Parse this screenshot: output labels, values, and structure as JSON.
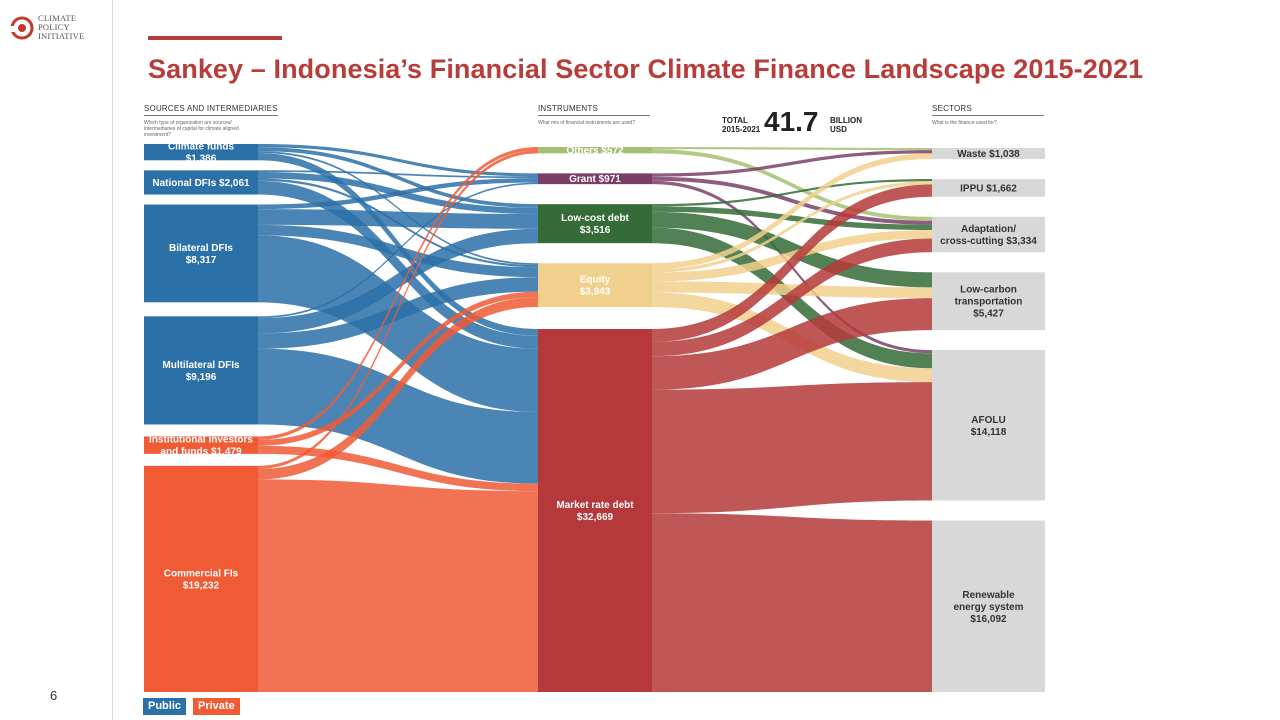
{
  "logo": {
    "text": "CLIMATE\nPOLICY\nINITIATIVE"
  },
  "page_number": "6",
  "title": "Sankey – Indonesia’s Financial Sector Climate Finance Landscape 2015-2021",
  "headers": {
    "sources": "SOURCES AND INTERMEDIARIES",
    "sources_sub": "Which type of organization are sources/ intermediaries of capital for climate aligned investment?",
    "instruments": "INSTRUMENTS",
    "instruments_sub": "What mix of financial instruments are used?",
    "sectors": "SECTORS",
    "sectors_sub": "What is the finance used for?"
  },
  "total": {
    "label_top": "TOTAL",
    "label_bottom": "2015-2021",
    "value": "41.7",
    "unit_top": "BILLION",
    "unit_bottom": "USD"
  },
  "legend": {
    "public": "Public",
    "private": "Private"
  },
  "colors": {
    "public": "#2c70a8",
    "private": "#f05a35",
    "title": "#b83c3a",
    "others": "#a5bf72",
    "grant": "#7a3f68",
    "lowcost": "#346b37",
    "equity": "#f1d08d",
    "market": "#b5393a",
    "sector": "#d8d8d8"
  },
  "chart_data": {
    "type": "sankey",
    "total": "41.7 BILLION USD",
    "nodes": [
      {
        "id": "climate_funds",
        "column": "sources",
        "label_lines": [
          "Climate funds",
          "$1,386"
        ],
        "value": 1386,
        "group": "public"
      },
      {
        "id": "national_dfis",
        "column": "sources",
        "label_lines": [
          "National DFIs $2,061"
        ],
        "value": 2061,
        "group": "public"
      },
      {
        "id": "bilateral_dfis",
        "column": "sources",
        "label_lines": [
          "Bilateral DFIs",
          "$8,317"
        ],
        "value": 8317,
        "group": "public"
      },
      {
        "id": "multilateral_dfis",
        "column": "sources",
        "label_lines": [
          "Multilateral DFIs",
          "$9,196"
        ],
        "value": 9196,
        "group": "public"
      },
      {
        "id": "institutional",
        "column": "sources",
        "label_lines": [
          "Institutional investors",
          "and funds $1,479"
        ],
        "value": 1479,
        "group": "private"
      },
      {
        "id": "commercial_fis",
        "column": "sources",
        "label_lines": [
          "Commercial FIs",
          "$19,232"
        ],
        "value": 19232,
        "group": "private"
      },
      {
        "id": "others",
        "column": "instruments",
        "label_lines": [
          "Others $572"
        ],
        "value": 572,
        "color": "others"
      },
      {
        "id": "grant",
        "column": "instruments",
        "label_lines": [
          "Grant $971"
        ],
        "value": 971,
        "color": "grant"
      },
      {
        "id": "lowcost",
        "column": "instruments",
        "label_lines": [
          "Low-cost debt",
          "$3,516"
        ],
        "value": 3516,
        "color": "lowcost"
      },
      {
        "id": "equity",
        "column": "instruments",
        "label_lines": [
          "Equity",
          "$3,943"
        ],
        "value": 3943,
        "color": "equity"
      },
      {
        "id": "market",
        "column": "instruments",
        "label_lines": [
          "Market rate debt",
          "$32,669"
        ],
        "value": 32669,
        "color": "market"
      },
      {
        "id": "waste",
        "column": "sectors",
        "label_lines": [
          "Waste $1,038"
        ],
        "value": 1038
      },
      {
        "id": "ippu",
        "column": "sectors",
        "label_lines": [
          "IPPU $1,662"
        ],
        "value": 1662
      },
      {
        "id": "adaptation",
        "column": "sectors",
        "label_lines": [
          "Adaptation/",
          "cross-cutting $3,334"
        ],
        "value": 3334
      },
      {
        "id": "transport",
        "column": "sectors",
        "label_lines": [
          "Low-carbon",
          "transportation",
          "$5,427"
        ],
        "value": 5427
      },
      {
        "id": "afolu",
        "column": "sectors",
        "label_lines": [
          "AFOLU",
          "$14,118"
        ],
        "value": 14118
      },
      {
        "id": "renewable",
        "column": "sectors",
        "label_lines": [
          "Renewable",
          "energy system",
          "$16,092"
        ],
        "value": 16092
      }
    ],
    "links": [
      {
        "source": "climate_funds",
        "target": "grant",
        "value": 280
      },
      {
        "source": "climate_funds",
        "target": "lowcost",
        "value": 330
      },
      {
        "source": "climate_funds",
        "target": "equity",
        "value": 160
      },
      {
        "source": "climate_funds",
        "target": "market",
        "value": 616
      },
      {
        "source": "national_dfis",
        "target": "grant",
        "value": 150
      },
      {
        "source": "national_dfis",
        "target": "lowcost",
        "value": 550
      },
      {
        "source": "national_dfis",
        "target": "equity",
        "value": 200
      },
      {
        "source": "national_dfis",
        "target": "market",
        "value": 1161
      },
      {
        "source": "bilateral_dfis",
        "target": "grant",
        "value": 390
      },
      {
        "source": "bilateral_dfis",
        "target": "lowcost",
        "value": 1336
      },
      {
        "source": "bilateral_dfis",
        "target": "equity",
        "value": 900
      },
      {
        "source": "bilateral_dfis",
        "target": "market",
        "value": 5691
      },
      {
        "source": "multilateral_dfis",
        "target": "grant",
        "value": 151
      },
      {
        "source": "multilateral_dfis",
        "target": "lowcost",
        "value": 1300
      },
      {
        "source": "multilateral_dfis",
        "target": "equity",
        "value": 1300
      },
      {
        "source": "multilateral_dfis",
        "target": "market",
        "value": 6445
      },
      {
        "source": "institutional",
        "target": "others",
        "value": 300
      },
      {
        "source": "institutional",
        "target": "equity",
        "value": 500
      },
      {
        "source": "institutional",
        "target": "market",
        "value": 679
      },
      {
        "source": "commercial_fis",
        "target": "others",
        "value": 272
      },
      {
        "source": "commercial_fis",
        "target": "equity",
        "value": 883
      },
      {
        "source": "commercial_fis",
        "target": "market",
        "value": 18077
      },
      {
        "source": "others",
        "target": "waste",
        "value": 200
      },
      {
        "source": "others",
        "target": "adaptation",
        "value": 372
      },
      {
        "source": "grant",
        "target": "waste",
        "value": 300
      },
      {
        "source": "grant",
        "target": "adaptation",
        "value": 371
      },
      {
        "source": "grant",
        "target": "afolu",
        "value": 300
      },
      {
        "source": "lowcost",
        "target": "ippu",
        "value": 200
      },
      {
        "source": "lowcost",
        "target": "adaptation",
        "value": 500
      },
      {
        "source": "lowcost",
        "target": "transport",
        "value": 1416
      },
      {
        "source": "lowcost",
        "target": "afolu",
        "value": 1400
      },
      {
        "source": "equity",
        "target": "waste",
        "value": 538
      },
      {
        "source": "equity",
        "target": "ippu",
        "value": 300
      },
      {
        "source": "equity",
        "target": "adaptation",
        "value": 800
      },
      {
        "source": "equity",
        "target": "transport",
        "value": 1005
      },
      {
        "source": "equity",
        "target": "afolu",
        "value": 1300
      },
      {
        "source": "market",
        "target": "ippu",
        "value": 1162
      },
      {
        "source": "market",
        "target": "adaptation",
        "value": 1291
      },
      {
        "source": "market",
        "target": "transport",
        "value": 3006
      },
      {
        "source": "market",
        "target": "afolu",
        "value": 11118
      },
      {
        "source": "market",
        "target": "renewable",
        "value": 16092
      }
    ]
  }
}
